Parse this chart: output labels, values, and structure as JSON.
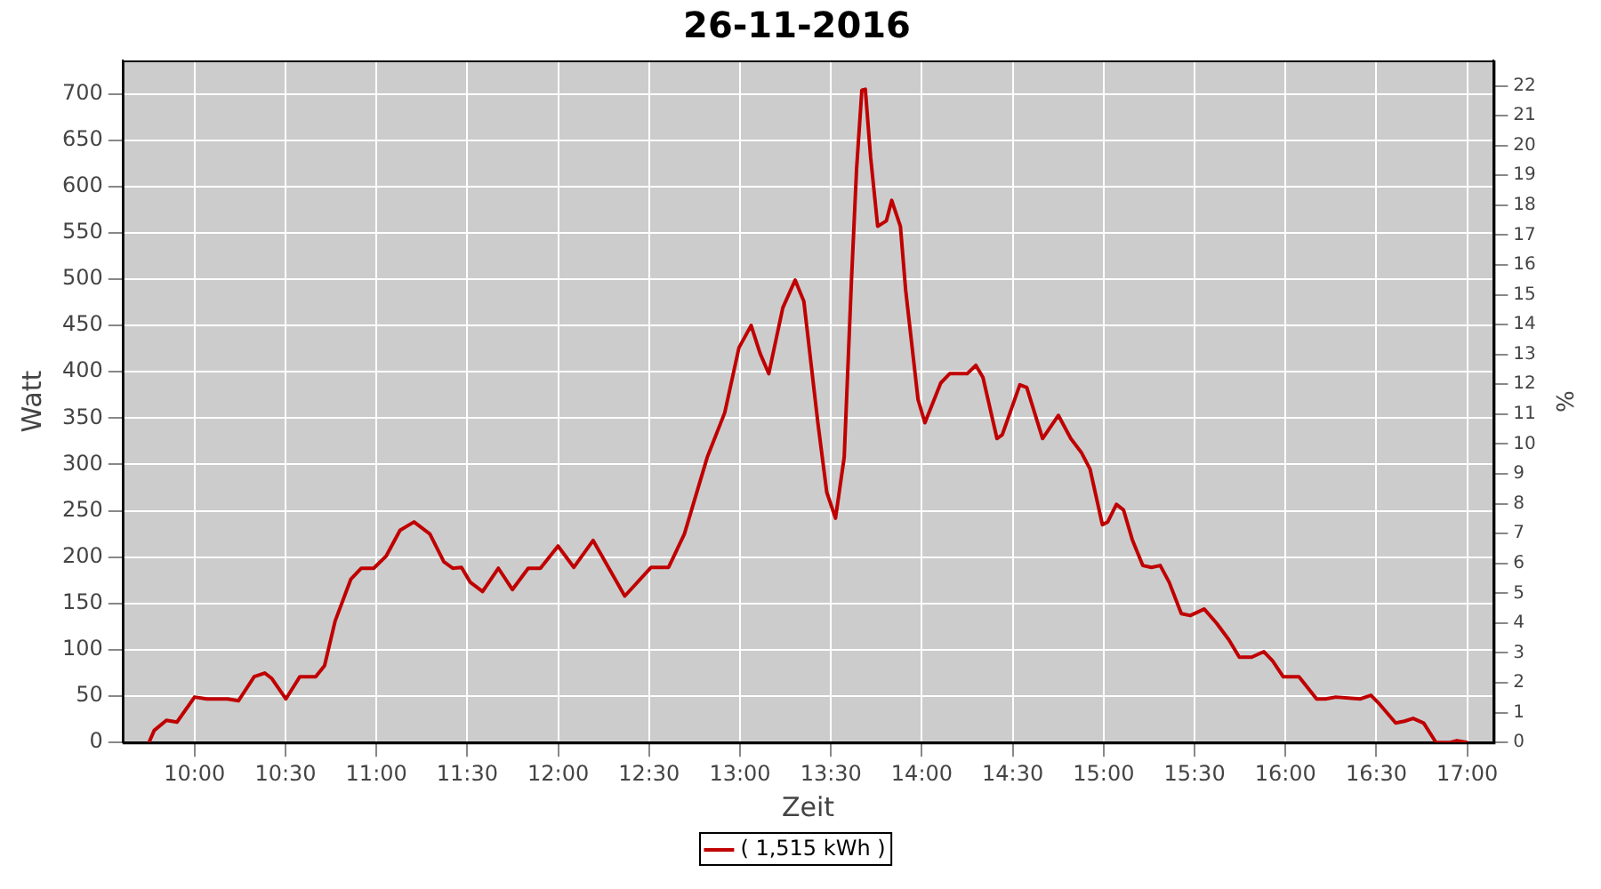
{
  "chart_data": {
    "type": "line",
    "title": "26-11-2016",
    "xlabel": "Zeit",
    "ylabel": "Watt",
    "y2label": "%",
    "x": [
      9.749,
      9.778,
      9.845,
      9.903,
      10,
      10.068,
      10.183,
      10.241,
      10.328,
      10.386,
      10.425,
      10.502,
      10.579,
      10.666,
      10.715,
      10.773,
      10.859,
      10.917,
      10.985,
      11.053,
      11.13,
      11.207,
      11.294,
      11.371,
      11.42,
      11.468,
      11.516,
      11.584,
      11.671,
      11.748,
      11.835,
      11.902,
      11.999,
      12.086,
      12.192,
      12.366,
      12.511,
      12.607,
      12.694,
      12.82,
      12.916,
      12.994,
      13.061,
      13.11,
      13.158,
      13.235,
      13.303,
      13.351,
      13.428,
      13.477,
      13.525,
      13.573,
      13.612,
      13.641,
      13.67,
      13.689,
      13.718,
      13.757,
      13.805,
      13.834,
      13.882,
      13.911,
      13.979,
      14.017,
      14.104,
      14.153,
      14.249,
      14.297,
      14.336,
      14.413,
      14.442,
      14.539,
      14.577,
      14.664,
      14.751,
      14.819,
      14.877,
      14.925,
      14.993,
      15.022,
      15.07,
      15.109,
      15.157,
      15.215,
      15.263,
      15.311,
      15.36,
      15.427,
      15.476,
      15.553,
      15.62,
      15.688,
      15.746,
      15.814,
      15.881,
      15.929,
      15.987,
      16.074,
      16.171,
      16.219,
      16.277,
      16.412,
      16.47,
      16.519,
      16.606,
      16.654,
      16.702,
      16.76,
      16.828,
      16.905,
      16.943,
      17.001
    ],
    "series": [
      {
        "name": "( 1,515 kWh )",
        "color": "#c00000",
        "values": [
          0,
          13,
          24,
          22,
          49,
          47,
          47,
          45,
          71,
          75,
          69,
          47,
          71,
          71,
          83,
          131,
          176,
          188,
          188,
          201,
          229,
          238,
          225,
          195,
          188,
          189,
          173,
          163,
          188,
          165,
          188,
          188,
          212,
          189,
          218,
          158,
          189,
          189,
          225,
          308,
          356,
          426,
          450,
          420,
          398,
          469,
          499,
          476,
          345,
          270,
          242,
          308,
          495,
          619,
          704,
          705,
          632,
          557,
          563,
          585,
          557,
          488,
          370,
          345,
          388,
          398,
          398,
          407,
          394,
          328,
          332,
          386,
          383,
          328,
          353,
          328,
          313,
          295,
          235,
          238,
          257,
          251,
          219,
          191,
          189,
          191,
          173,
          139,
          137,
          144,
          129,
          111,
          92,
          92,
          98,
          88,
          71,
          71,
          47,
          47,
          49,
          47,
          51,
          41,
          21,
          23,
          26,
          21,
          0,
          0,
          2,
          0
        ]
      }
    ],
    "xlim": [
      9.604,
      17.145
    ],
    "xticks": [
      {
        "value": 10,
        "label": "10:00"
      },
      {
        "value": 10.5,
        "label": "10:30"
      },
      {
        "value": 11,
        "label": "11:00"
      },
      {
        "value": 11.5,
        "label": "11:30"
      },
      {
        "value": 12,
        "label": "12:00"
      },
      {
        "value": 12.5,
        "label": "12:30"
      },
      {
        "value": 13,
        "label": "13:00"
      },
      {
        "value": 13.5,
        "label": "13:30"
      },
      {
        "value": 14,
        "label": "14:00"
      },
      {
        "value": 14.5,
        "label": "14:30"
      },
      {
        "value": 15,
        "label": "15:00"
      },
      {
        "value": 15.5,
        "label": "15:30"
      },
      {
        "value": 16,
        "label": "16:00"
      },
      {
        "value": 16.5,
        "label": "16:30"
      },
      {
        "value": 17,
        "label": "17:00"
      }
    ],
    "ylim": [
      0,
      736
    ],
    "yticks": [
      0,
      50,
      100,
      150,
      200,
      250,
      300,
      350,
      400,
      450,
      500,
      550,
      600,
      650,
      700
    ],
    "y2lim": [
      0,
      22.85
    ],
    "y2ticks": [
      0,
      1,
      2,
      3,
      4,
      5,
      6,
      7,
      8,
      9,
      10,
      11,
      12,
      13,
      14,
      15,
      16,
      17,
      18,
      19,
      20,
      21,
      22
    ],
    "grid": true,
    "legend": "bottom",
    "marker": "none",
    "line_style": "solid"
  }
}
